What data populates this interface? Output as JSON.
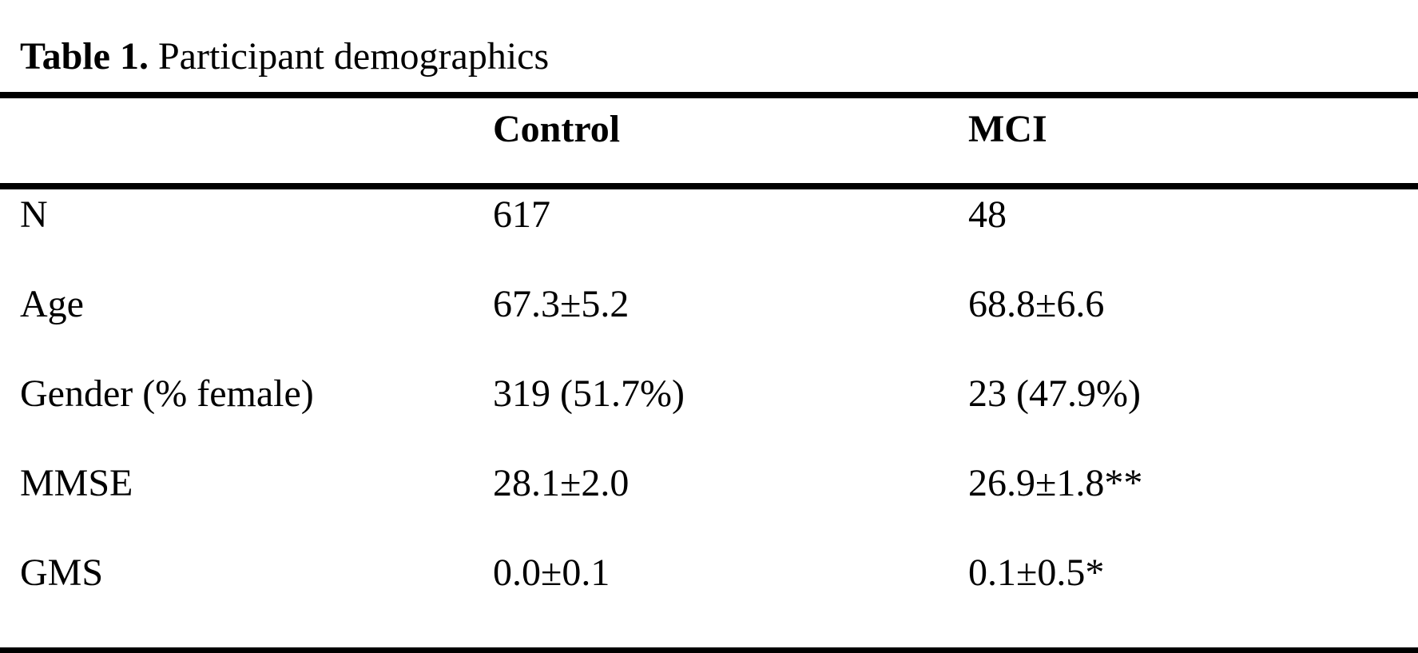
{
  "caption": {
    "label": "Table 1.",
    "text": "Participant demographics"
  },
  "table": {
    "header": {
      "label": "",
      "control": "Control",
      "mci": "MCI"
    },
    "rows": [
      {
        "label": "N",
        "control": "617",
        "mci": "48"
      },
      {
        "label": "Age",
        "control": "67.3±5.2",
        "mci": "68.8±6.6"
      },
      {
        "label": "Gender (% female)",
        "control": "319 (51.7%)",
        "mci": "23 (47.9%)"
      },
      {
        "label": "MMSE",
        "control": "28.1±2.0",
        "mci": "26.9±1.8**"
      },
      {
        "label": "GMS",
        "control": "0.0±0.1",
        "mci": "0.1±0.5*"
      }
    ]
  },
  "colors": {
    "background": "#ffffff",
    "text": "#000000",
    "rule": "#000000"
  }
}
